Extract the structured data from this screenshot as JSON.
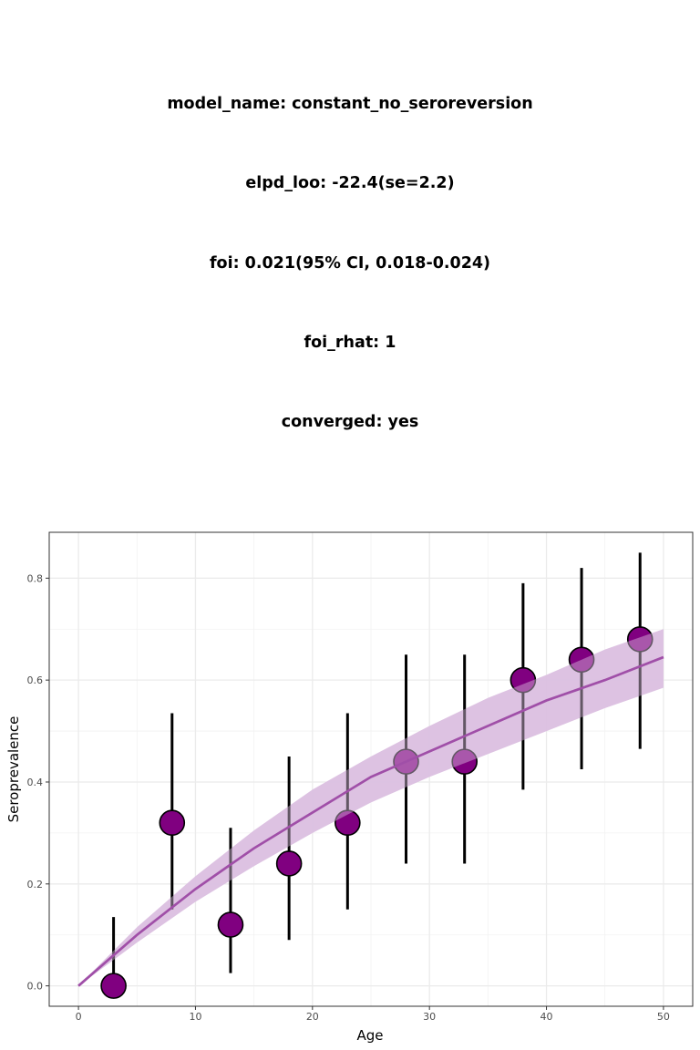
{
  "summary": {
    "model_name": "model_name: constant_no_seroreversion",
    "elpd_loo": "elpd_loo: -22.4(se=2.2)",
    "foi": "foi: 0.021(95% CI, 0.018-0.024)",
    "foi_rhat": "foi_rhat: 1",
    "converged": "converged: yes"
  },
  "chart_data": {
    "type": "scatter",
    "xlabel": "Age",
    "ylabel": "Seroprevalence",
    "xlim": [
      -2.5,
      52.5
    ],
    "ylim": [
      -0.04,
      0.89
    ],
    "x_ticks": [
      0,
      10,
      20,
      30,
      40,
      50
    ],
    "x_tick_labels": [
      "0",
      "10",
      "20",
      "30",
      "40",
      "50"
    ],
    "y_ticks": [
      0.0,
      0.2,
      0.4,
      0.6,
      0.8
    ],
    "y_tick_labels": [
      "0.0",
      "0.2",
      "0.4",
      "0.6",
      "0.8"
    ],
    "grid": true,
    "colors": {
      "fit": "#A04FA8",
      "band": "#DCC0E1",
      "point": "#800080",
      "error": "#000000"
    },
    "observed": {
      "x": [
        3,
        8,
        13,
        18,
        23,
        28,
        33,
        38,
        43,
        48
      ],
      "y": [
        0.0,
        0.32,
        0.12,
        0.24,
        0.32,
        0.44,
        0.44,
        0.6,
        0.64,
        0.68
      ],
      "lower": [
        0.0,
        0.15,
        0.025,
        0.09,
        0.15,
        0.24,
        0.24,
        0.385,
        0.425,
        0.465
      ],
      "upper": [
        0.135,
        0.535,
        0.31,
        0.45,
        0.535,
        0.65,
        0.65,
        0.79,
        0.82,
        0.85
      ]
    },
    "fitted": {
      "x": [
        0,
        5,
        10,
        15,
        20,
        25,
        30,
        35,
        40,
        45,
        50
      ],
      "y": [
        0.0,
        0.1,
        0.19,
        0.27,
        0.34,
        0.41,
        0.46,
        0.51,
        0.56,
        0.6,
        0.645
      ],
      "lower": [
        0.0,
        0.085,
        0.165,
        0.235,
        0.3,
        0.36,
        0.41,
        0.455,
        0.5,
        0.545,
        0.585
      ],
      "upper": [
        0.0,
        0.115,
        0.215,
        0.305,
        0.385,
        0.45,
        0.51,
        0.565,
        0.61,
        0.66,
        0.7
      ]
    }
  }
}
